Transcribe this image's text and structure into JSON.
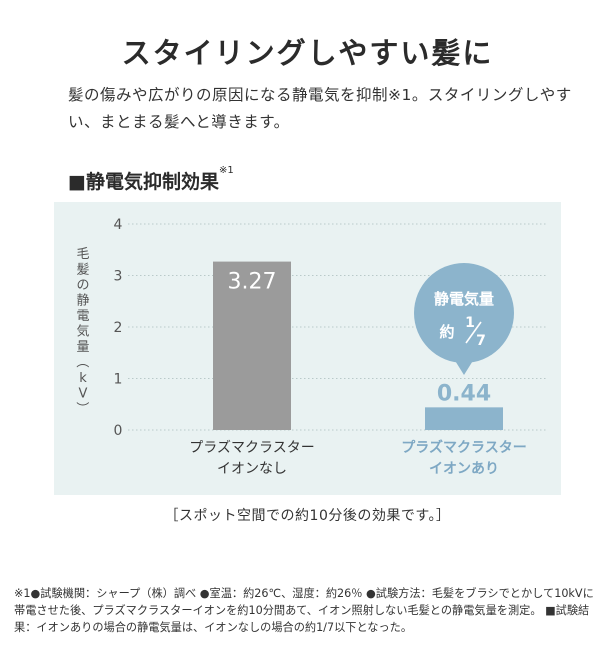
{
  "title": "スタイリングしやすい髪に",
  "lead": "髪の傷みや広がりの原因になる静電気を抑制※1。スタイリングしやすい、まとまる髪へと導きます。",
  "section": {
    "marker": "■",
    "heading": "静電気抑制効果",
    "note_mark": "※1"
  },
  "caption": "［スポット空間での約10分後の効果です。］",
  "footnote": "※1●試験機関：シャープ（株）調べ ●室温：約26℃、湿度：約26％ ●試験方法：毛髪をブラシでとかして10kVに帯電させた後、プラズマクラスターイオンを約10分間あて、イオン照射しない毛髪との静電気量を測定。 ■試験結果：イオンありの場合の静電気量は、イオンなしの場合の約1/7以下となった。",
  "colors": {
    "chart_background": "#e9f2f2",
    "bar_without": "#9b9b9b",
    "bar_with": "#8cb4cc",
    "label_with": "#7ea8c4",
    "balloon": "#8cb4cc",
    "axis_text": "#555555"
  },
  "chart_data": {
    "type": "bar",
    "ylabel": "毛髪の静電気量（kV）",
    "ylim": [
      0,
      4
    ],
    "yticks": [
      0,
      1,
      2,
      3,
      4
    ],
    "grid": true,
    "categories": [
      [
        "プラズマクラスター",
        "イオンなし"
      ],
      [
        "プラズマクラスター",
        "イオンあり"
      ]
    ],
    "values": [
      3.27,
      0.44
    ],
    "data_labels": [
      "3.27",
      "0.44"
    ],
    "annotation": {
      "line1": "静電気量",
      "prefix": "約",
      "numerator": "1",
      "denominator": "7"
    }
  }
}
